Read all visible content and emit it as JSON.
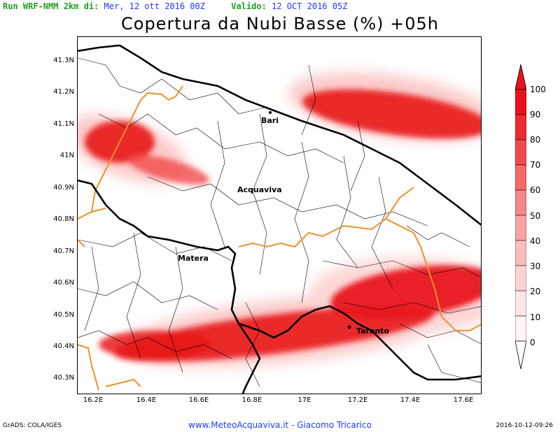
{
  "header": {
    "run_label": "Run WRF-NMM 2km di:",
    "run_date": "Mer, 12 ott 2016 00Z",
    "valid_label": "Valido:",
    "valid_date": "12 OCT 2016 05Z"
  },
  "title": "Copertura da Nubi Basse (%) +05h",
  "map": {
    "lat_labels": [
      "41.3N",
      "41.2N",
      "41.1N",
      "41N",
      "40.9N",
      "40.8N",
      "40.7N",
      "40.6N",
      "40.5N",
      "40.4N",
      "40.3N"
    ],
    "lon_labels": [
      "16.2E",
      "16.4E",
      "16.6E",
      "16.8E",
      "17E",
      "17.2E",
      "17.4E",
      "17.6E"
    ],
    "cities": [
      {
        "name": "Bari"
      },
      {
        "name": "Acquaviva"
      },
      {
        "name": "Matera"
      },
      {
        "name": "Taranto"
      }
    ],
    "colors": {
      "cloud": "#e8141a",
      "province_border": "#f0902a",
      "region_border": "#000000",
      "municipal": "#000000"
    }
  },
  "colorbar": {
    "labels": [
      "100",
      "90",
      "80",
      "70",
      "60",
      "50",
      "40",
      "30",
      "20",
      "10",
      "0"
    ],
    "colors": [
      "#e8101a",
      "#ee2a2e",
      "#f24a4a",
      "#f56a68",
      "#f78888",
      "#f9a3a3",
      "#fbbcbc",
      "#fdd3d3",
      "#fee6e6",
      "#fff3f3",
      "#ffffff"
    ]
  },
  "footer": {
    "left": "GrADS: COLA/IGES",
    "center": "www.MeteoAcquaviva.it  -  Giacomo Tricarico",
    "right": "2016-10-12-09:26"
  }
}
